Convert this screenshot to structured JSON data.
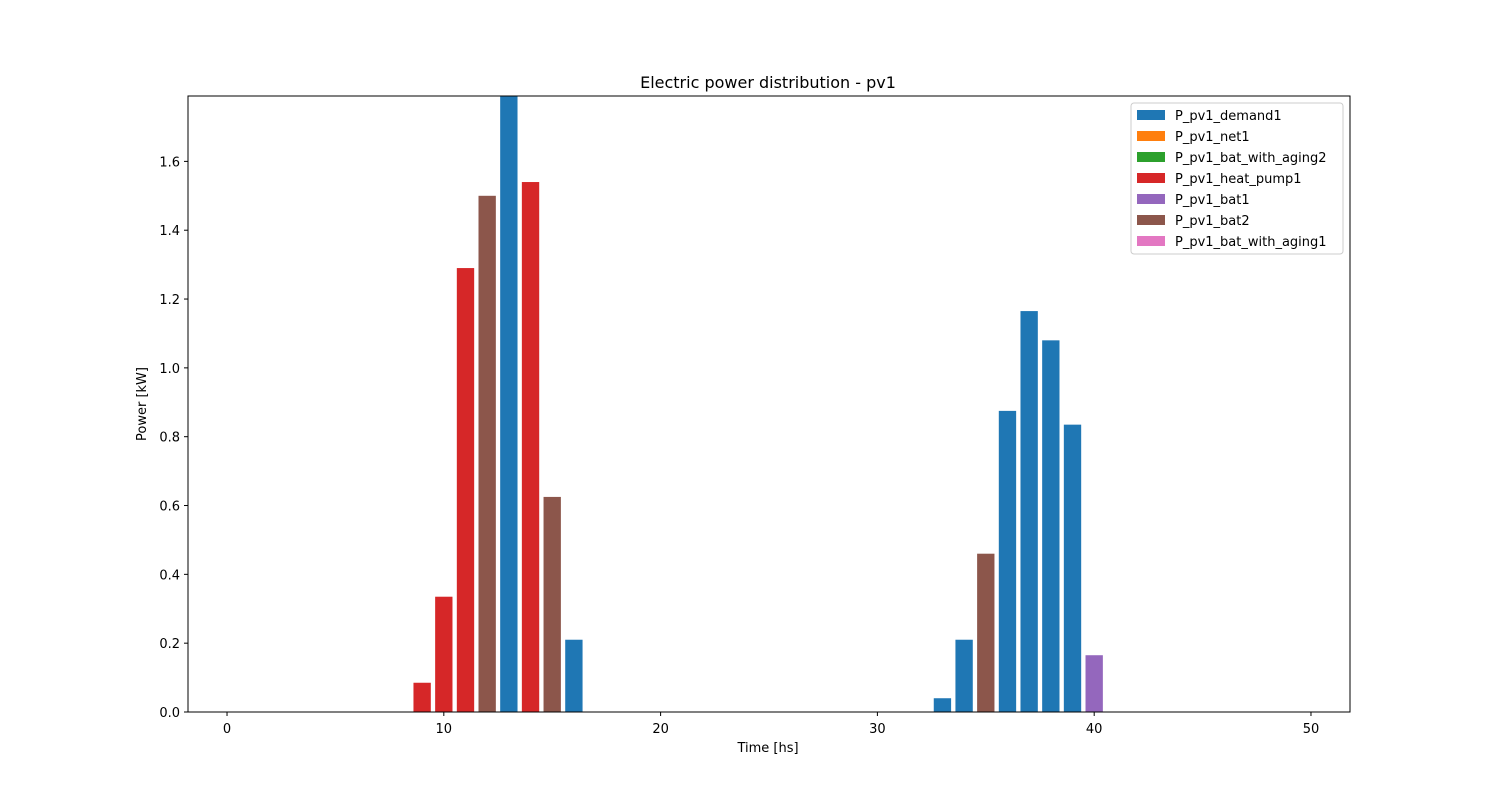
{
  "chart_data": {
    "type": "bar",
    "title": "Electric power distribution - pv1",
    "xlabel": "Time [hs]",
    "ylabel": "Power [kW]",
    "xlim": [
      -1.8,
      51.8
    ],
    "ylim": [
      0,
      1.79
    ],
    "xticks": [
      0,
      10,
      20,
      30,
      40,
      50
    ],
    "yticks": [
      0.0,
      0.2,
      0.4,
      0.6,
      0.8,
      1.0,
      1.2,
      1.4,
      1.6
    ],
    "ytick_labels": [
      "0.0",
      "0.2",
      "0.4",
      "0.6",
      "0.8",
      "1.0",
      "1.2",
      "1.4",
      "1.6"
    ],
    "grid": false,
    "legend_position": "top-right",
    "bar_width": 0.8,
    "series": [
      {
        "name": "P_pv1_demand1",
        "color": "#1f77b4",
        "x": [
          13,
          16,
          33,
          34,
          36,
          37,
          38,
          39
        ],
        "values": [
          1.79,
          0.21,
          0.04,
          0.21,
          0.875,
          1.165,
          1.08,
          0.835
        ]
      },
      {
        "name": "P_pv1_net1",
        "color": "#ff7f0e",
        "x": [],
        "values": []
      },
      {
        "name": "P_pv1_bat_with_aging2",
        "color": "#2ca02c",
        "x": [],
        "values": []
      },
      {
        "name": "P_pv1_heat_pump1",
        "color": "#d62728",
        "x": [
          9,
          10,
          11,
          14
        ],
        "values": [
          0.085,
          0.335,
          1.29,
          1.54
        ]
      },
      {
        "name": "P_pv1_bat1",
        "color": "#9467bd",
        "x": [
          40
        ],
        "values": [
          0.165
        ]
      },
      {
        "name": "P_pv1_bat2",
        "color": "#8c564b",
        "x": [
          12,
          15,
          35
        ],
        "values": [
          1.5,
          0.625,
          0.46
        ]
      },
      {
        "name": "P_pv1_bat_with_aging1",
        "color": "#e377c2",
        "x": [],
        "values": []
      }
    ]
  }
}
